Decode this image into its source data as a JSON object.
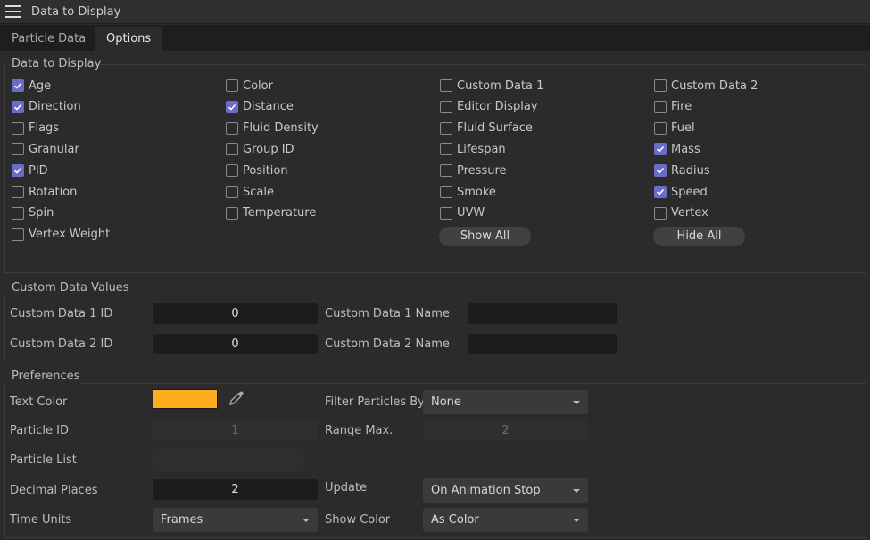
{
  "window": {
    "title": "Data to Display",
    "menu_icon": "hamburger-icon"
  },
  "tabs": [
    {
      "label": "Particle Data",
      "active": false
    },
    {
      "label": "Options",
      "active": true
    }
  ],
  "data_to_display": {
    "title": "Data to Display",
    "columns": [
      [
        {
          "label": "Age",
          "checked": true
        },
        {
          "label": "Direction",
          "checked": true
        },
        {
          "label": "Flags",
          "checked": false
        },
        {
          "label": "Granular",
          "checked": false
        },
        {
          "label": "PID",
          "checked": true
        },
        {
          "label": "Rotation",
          "checked": false
        },
        {
          "label": "Spin",
          "checked": false
        },
        {
          "label": "Vertex Weight",
          "checked": false
        }
      ],
      [
        {
          "label": "Color",
          "checked": false
        },
        {
          "label": "Distance",
          "checked": true
        },
        {
          "label": "Fluid Density",
          "checked": false
        },
        {
          "label": "Group ID",
          "checked": false
        },
        {
          "label": "Position",
          "checked": false
        },
        {
          "label": "Scale",
          "checked": false
        },
        {
          "label": "Temperature",
          "checked": false
        }
      ],
      [
        {
          "label": "Custom Data 1",
          "checked": false
        },
        {
          "label": "Editor Display",
          "checked": false
        },
        {
          "label": "Fluid Surface",
          "checked": false
        },
        {
          "label": "Lifespan",
          "checked": false
        },
        {
          "label": "Pressure",
          "checked": false
        },
        {
          "label": "Smoke",
          "checked": false
        },
        {
          "label": "UVW",
          "checked": false
        }
      ],
      [
        {
          "label": "Custom Data 2",
          "checked": false
        },
        {
          "label": "Fire",
          "checked": false
        },
        {
          "label": "Fuel",
          "checked": false
        },
        {
          "label": "Mass",
          "checked": true
        },
        {
          "label": "Radius",
          "checked": true
        },
        {
          "label": "Speed",
          "checked": true
        },
        {
          "label": "Vertex",
          "checked": false
        }
      ]
    ],
    "show_all": "Show All",
    "hide_all": "Hide All",
    "accent": "#6b6bc8"
  },
  "custom_data": {
    "title": "Custom Data Values",
    "id1_label": "Custom Data 1 ID",
    "id1_value": "0",
    "name1_label": "Custom Data 1 Name",
    "name1_value": "",
    "id2_label": "Custom Data 2 ID",
    "id2_value": "0",
    "name2_label": "Custom Data 2 Name",
    "name2_value": ""
  },
  "preferences": {
    "title": "Preferences",
    "text_color_label": "Text Color",
    "text_color": "#ffad1f",
    "eyedropper_icon": "eyedropper-icon",
    "filter_label": "Filter Particles By",
    "filter_value": "None",
    "particle_id_label": "Particle ID",
    "particle_id_value": "1",
    "range_max_label": "Range Max.",
    "range_max_value": "2",
    "particle_list_label": "Particle List",
    "particle_list_value": "",
    "decimal_label": "Decimal Places",
    "decimal_value": "2",
    "update_label": "Update",
    "update_value": "On Animation Stop",
    "time_units_label": "Time Units",
    "time_units_value": "Frames",
    "show_color_label": "Show Color",
    "show_color_value": "As Color"
  }
}
